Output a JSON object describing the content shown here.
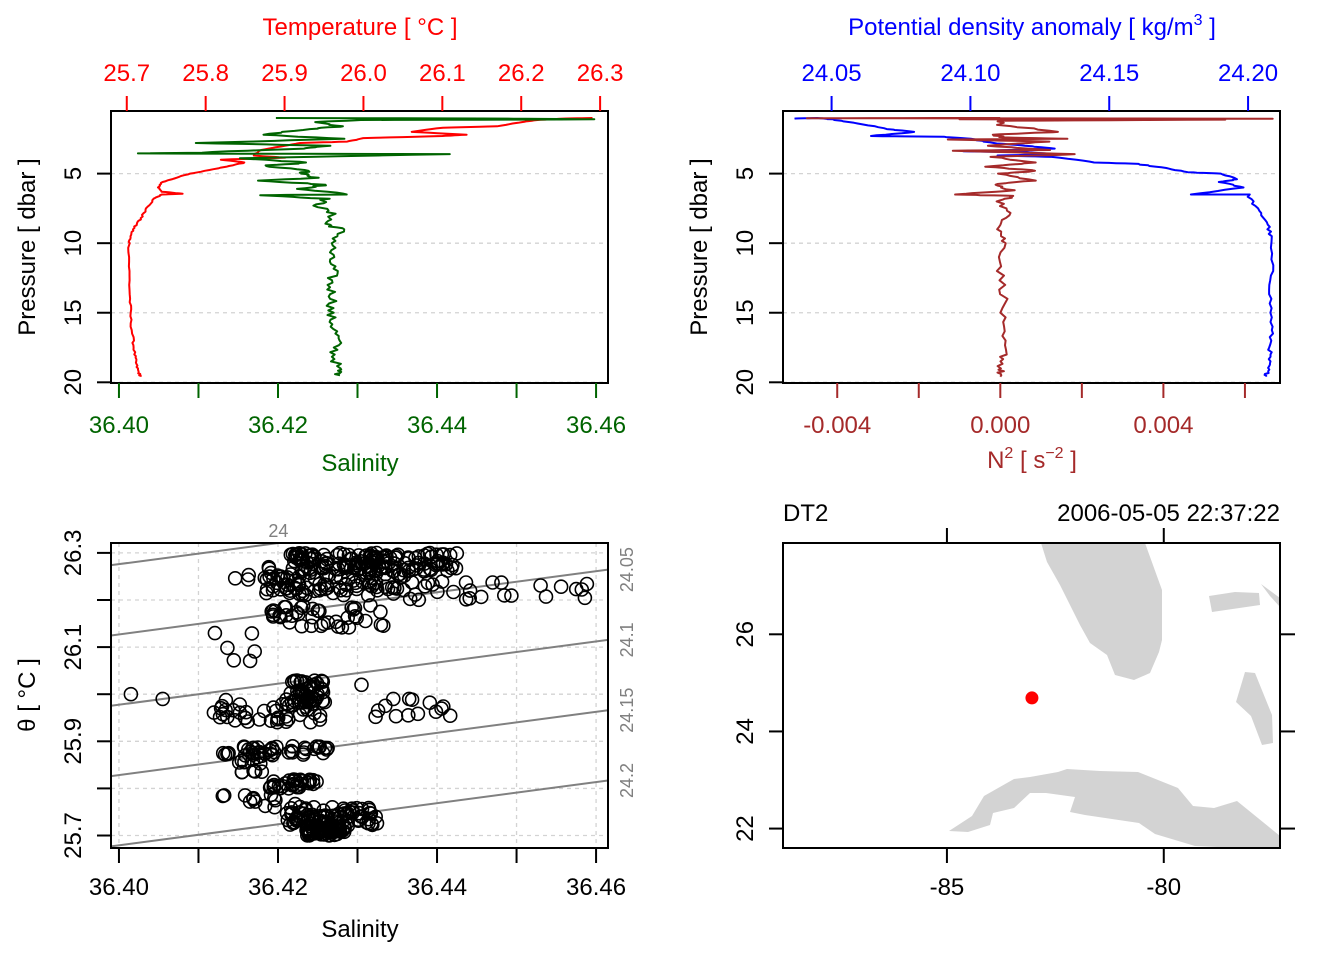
{
  "chart_data": [
    {
      "id": "ts_profile",
      "type": "line",
      "top_axis": {
        "label": "Temperature [ °C ]",
        "color": "#ff0000",
        "range": [
          25.68,
          26.31
        ],
        "ticks": [
          25.7,
          25.8,
          25.9,
          26.0,
          26.1,
          26.2,
          26.3
        ],
        "tick_labels": [
          "25.7",
          "25.8",
          "25.9",
          "26.0",
          "26.1",
          "26.2",
          "26.3"
        ]
      },
      "bottom_axis": {
        "label": "Salinity",
        "color": "#006400",
        "range": [
          36.399,
          36.4615
        ],
        "ticks": [
          36.4,
          36.41,
          36.42,
          36.43,
          36.44,
          36.45,
          36.46
        ],
        "tick_labels": [
          "36.40",
          "",
          "36.42",
          "",
          "36.44",
          "",
          "36.46"
        ]
      },
      "y_axis": {
        "label": "Pressure [ dbar ]",
        "range": [
          20.05,
          0.5
        ],
        "ticks": [
          5,
          10,
          15,
          20
        ],
        "tick_labels": [
          "5",
          "10",
          "15",
          "20"
        ],
        "grid": true
      },
      "series": [
        {
          "name": "Temperature",
          "color": "#ff0000",
          "points": [
            [
              26.29,
              1.0
            ],
            [
              26.25,
              1.05
            ],
            [
              26.22,
              1.15
            ],
            [
              26.2,
              1.3
            ],
            [
              26.17,
              1.6
            ],
            [
              26.1,
              1.7
            ],
            [
              26.06,
              2.0
            ],
            [
              26.13,
              2.2
            ],
            [
              26.1,
              2.3
            ],
            [
              26.0,
              2.45
            ],
            [
              25.98,
              2.7
            ],
            [
              25.92,
              2.8
            ],
            [
              25.9,
              3.0
            ],
            [
              25.87,
              3.3
            ],
            [
              25.86,
              3.7
            ],
            [
              25.9,
              3.85
            ],
            [
              25.82,
              4.0
            ],
            [
              25.85,
              4.2
            ],
            [
              25.83,
              4.45
            ],
            [
              25.8,
              4.8
            ],
            [
              25.78,
              5.0
            ],
            [
              25.76,
              5.35
            ],
            [
              25.745,
              5.6
            ],
            [
              25.74,
              6.0
            ],
            [
              25.745,
              6.3
            ],
            [
              25.77,
              6.45
            ],
            [
              25.745,
              6.5
            ],
            [
              25.735,
              6.8
            ],
            [
              25.725,
              7.5
            ],
            [
              25.718,
              8.2
            ],
            [
              25.71,
              8.8
            ],
            [
              25.705,
              9.4
            ],
            [
              25.703,
              10.0
            ],
            [
              25.703,
              12.0
            ],
            [
              25.704,
              14.0
            ],
            [
              25.705,
              15.5
            ],
            [
              25.708,
              17.0
            ],
            [
              25.71,
              18.0
            ],
            [
              25.712,
              18.7
            ],
            [
              25.715,
              19.3
            ],
            [
              25.718,
              19.6
            ]
          ]
        },
        {
          "name": "Salinity",
          "color": "#006400",
          "points": [
            [
              36.42,
              1.0
            ],
            [
              36.45,
              1.05
            ],
            [
              36.46,
              1.1
            ],
            [
              36.43,
              1.15
            ],
            [
              36.425,
              1.3
            ],
            [
              36.428,
              1.6
            ],
            [
              36.424,
              1.8
            ],
            [
              36.418,
              2.2
            ],
            [
              36.428,
              2.5
            ],
            [
              36.41,
              2.8
            ],
            [
              36.426,
              3.0
            ],
            [
              36.423,
              3.2
            ],
            [
              36.41,
              3.5
            ],
            [
              36.402,
              3.55
            ],
            [
              36.441,
              3.6
            ],
            [
              36.415,
              3.9
            ],
            [
              36.424,
              4.2
            ],
            [
              36.418,
              4.45
            ],
            [
              36.424,
              4.8
            ],
            [
              36.423,
              5.0
            ],
            [
              36.425,
              5.3
            ],
            [
              36.418,
              5.5
            ],
            [
              36.426,
              5.8
            ],
            [
              36.423,
              6.1
            ],
            [
              36.429,
              6.5
            ],
            [
              36.418,
              6.55
            ],
            [
              36.426,
              6.8
            ],
            [
              36.425,
              7.3
            ],
            [
              36.427,
              8.0
            ],
            [
              36.426,
              8.6
            ],
            [
              36.428,
              9.0
            ],
            [
              36.427,
              10.0
            ],
            [
              36.4265,
              11.0
            ],
            [
              36.427,
              12.0
            ],
            [
              36.4265,
              13.0
            ],
            [
              36.427,
              14.0
            ],
            [
              36.4265,
              15.0
            ],
            [
              36.427,
              16.0
            ],
            [
              36.4275,
              17.0
            ],
            [
              36.427,
              18.0
            ],
            [
              36.4275,
              19.0
            ],
            [
              36.4278,
              19.5
            ]
          ]
        }
      ]
    },
    {
      "id": "density_profile",
      "type": "line",
      "top_axis": {
        "label_main": "Potential density anomaly [ kg/m",
        "label_sup": "3",
        "label_end": " ]",
        "color": "#0000ff",
        "range": [
          24.0325,
          24.2115
        ],
        "ticks": [
          24.05,
          24.1,
          24.15,
          24.2
        ],
        "tick_labels": [
          "24.05",
          "24.10",
          "24.15",
          "24.20"
        ]
      },
      "bottom_axis": {
        "label_main": "N",
        "label_sup": "2",
        "label_mid": " [ s",
        "label_sup2": "−2",
        "label_end": " ]",
        "color": "#a52a2a",
        "range": [
          -0.00533,
          0.00686
        ],
        "ticks": [
          -0.004,
          -0.002,
          0.0,
          0.002,
          0.004,
          0.006
        ],
        "tick_labels": [
          "-0.004",
          "",
          "0.000",
          "",
          "0.004",
          ""
        ]
      },
      "y_axis": {
        "label": "Pressure [ dbar ]",
        "range": [
          20.05,
          0.5
        ],
        "ticks": [
          5,
          10,
          15,
          20
        ],
        "tick_labels": [
          "5",
          "10",
          "15",
          "20"
        ],
        "grid": true
      },
      "series": [
        {
          "name": "Potential density anomaly",
          "color": "#0000ff",
          "points": [
            [
              24.036,
              1.05
            ],
            [
              24.045,
              1.0
            ],
            [
              24.05,
              1.1
            ],
            [
              24.06,
              1.4
            ],
            [
              24.07,
              1.8
            ],
            [
              24.08,
              2.0
            ],
            [
              24.064,
              2.3
            ],
            [
              24.09,
              2.35
            ],
            [
              24.1,
              2.5
            ],
            [
              24.108,
              2.8
            ],
            [
              24.12,
              3.0
            ],
            [
              24.13,
              3.2
            ],
            [
              24.098,
              3.4
            ],
            [
              24.12,
              3.45
            ],
            [
              24.13,
              3.6
            ],
            [
              24.11,
              3.7
            ],
            [
              24.13,
              3.8
            ],
            [
              24.145,
              4.2
            ],
            [
              24.16,
              4.3
            ],
            [
              24.17,
              4.6
            ],
            [
              24.178,
              4.9
            ],
            [
              24.19,
              5.0
            ],
            [
              24.196,
              5.4
            ],
            [
              24.19,
              5.6
            ],
            [
              24.198,
              6.0
            ],
            [
              24.18,
              6.5
            ],
            [
              24.2,
              6.5
            ],
            [
              24.203,
              7.5
            ],
            [
              24.207,
              8.5
            ],
            [
              24.208,
              9.5
            ],
            [
              24.2085,
              12.0
            ],
            [
              24.208,
              14.0
            ],
            [
              24.2085,
              16.0
            ],
            [
              24.208,
              17.5
            ],
            [
              24.2075,
              18.5
            ],
            [
              24.207,
              19.2
            ],
            [
              24.2065,
              19.6
            ]
          ]
        },
        {
          "name": "N2",
          "color": "#a52a2a",
          "points": [
            [
              0.0,
              1.0
            ],
            [
              -0.0047,
              1.02
            ],
            [
              0.0067,
              1.05
            ],
            [
              -0.001,
              1.1
            ],
            [
              0.0055,
              1.12
            ],
            [
              0.0,
              1.2
            ],
            [
              0.0,
              1.5
            ],
            [
              0.0015,
              2.0
            ],
            [
              -0.0002,
              2.2
            ],
            [
              0.0001,
              2.4
            ],
            [
              0.0016,
              2.5
            ],
            [
              -0.0013,
              2.55
            ],
            [
              0.0012,
              2.7
            ],
            [
              -0.0003,
              3.0
            ],
            [
              0.0013,
              3.3
            ],
            [
              -0.0012,
              3.35
            ],
            [
              0.0019,
              3.6
            ],
            [
              -0.0002,
              3.8
            ],
            [
              0.0008,
              4.2
            ],
            [
              -0.0003,
              4.5
            ],
            [
              0.0009,
              4.8
            ],
            [
              0.0,
              5.0
            ],
            [
              0.0008,
              5.5
            ],
            [
              -0.0002,
              5.8
            ],
            [
              0.0003,
              6.2
            ],
            [
              -0.0011,
              6.5
            ],
            [
              0.0003,
              6.6
            ],
            [
              0.0,
              7.0
            ],
            [
              0.0002,
              8.0
            ],
            [
              0.0,
              9.0
            ],
            [
              0.0001,
              10.0
            ],
            [
              0.0,
              12.0
            ],
            [
              0.0001,
              14.0
            ],
            [
              0.0,
              16.0
            ],
            [
              0.0001,
              18.0
            ],
            [
              0.0,
              19.0
            ],
            [
              0.0,
              19.6
            ]
          ]
        }
      ]
    },
    {
      "id": "ts_diagram",
      "type": "scatter",
      "xlabel": "Salinity",
      "ylabel": "θ [ °C ]",
      "xlim": [
        36.399,
        36.4615
      ],
      "ylim": [
        25.6735,
        26.321
      ],
      "x_ticks": [
        36.4,
        36.41,
        36.42,
        36.43,
        36.44,
        36.45,
        36.46
      ],
      "x_tick_labels": [
        "36.40",
        "",
        "36.42",
        "",
        "36.44",
        "",
        "36.46"
      ],
      "y_ticks": [
        25.7,
        25.8,
        25.9,
        26.0,
        26.1,
        26.2,
        26.3
      ],
      "y_tick_labels": [
        "25.7",
        "",
        "25.9",
        "",
        "26.1",
        "",
        "26.3"
      ],
      "grid": true,
      "isopycnals": [
        {
          "label": "24",
          "value": 24.0
        },
        {
          "label": "24.05",
          "value": 24.05
        },
        {
          "label": "24.1",
          "value": 24.1
        },
        {
          "label": "24.15",
          "value": 24.15
        },
        {
          "label": "24.2",
          "value": 24.2
        }
      ],
      "clusters": [
        {
          "s": [
            36.4215,
            36.4425
          ],
          "t": [
            26.26,
            26.3
          ],
          "n": 140
        },
        {
          "s": [
            36.4185,
            36.436
          ],
          "t": [
            26.21,
            26.27
          ],
          "n": 90
        },
        {
          "s": [
            36.436,
            36.459
          ],
          "t": [
            26.2,
            26.24
          ],
          "n": 26
        },
        {
          "s": [
            36.4125,
            36.421
          ],
          "t": [
            26.24,
            26.26
          ],
          "n": 8
        },
        {
          "s": [
            36.419,
            36.434
          ],
          "t": [
            26.14,
            26.19
          ],
          "n": 40
        },
        {
          "s": [
            36.4115,
            36.418
          ],
          "t": [
            26.07,
            26.14
          ],
          "n": 6
        },
        {
          "s": [
            36.421,
            36.426
          ],
          "t": [
            25.98,
            26.03
          ],
          "n": 45
        },
        {
          "s": [
            36.4115,
            36.426
          ],
          "t": [
            25.94,
            25.99
          ],
          "n": 45
        },
        {
          "s": [
            36.4305,
            36.442
          ],
          "t": [
            25.95,
            25.99
          ],
          "n": 12
        },
        {
          "s": [
            36.413,
            36.427
          ],
          "t": [
            25.87,
            25.89
          ],
          "n": 40
        },
        {
          "s": [
            36.4135,
            36.418
          ],
          "t": [
            25.83,
            25.87
          ],
          "n": 12
        },
        {
          "s": [
            36.419,
            36.425
          ],
          "t": [
            25.8,
            25.82
          ],
          "n": 30
        },
        {
          "s": [
            36.413,
            36.423
          ],
          "t": [
            25.76,
            25.79
          ],
          "n": 14
        },
        {
          "s": [
            36.421,
            36.4325
          ],
          "t": [
            25.72,
            25.76
          ],
          "n": 80
        },
        {
          "s": [
            36.4235,
            36.4285
          ],
          "t": [
            25.7,
            25.72
          ],
          "n": 60
        }
      ],
      "outliers": [
        [
          36.4015,
          26.0
        ],
        [
          36.4055,
          25.99
        ],
        [
          36.4305,
          26.02
        ],
        [
          36.4345,
          25.99
        ],
        [
          36.4365,
          25.99
        ]
      ]
    },
    {
      "id": "station_map",
      "type": "scatter",
      "title_left": "DT2",
      "title_right": "2006-05-05 22:37:22",
      "xlim": [
        -88.78,
        -77.32
      ],
      "ylim": [
        21.6,
        27.88
      ],
      "x_ticks": [
        -85,
        -80
      ],
      "x_tick_labels": [
        "-85",
        "-80"
      ],
      "y_ticks": [
        22,
        24,
        26
      ],
      "y_tick_labels": [
        "22",
        "24",
        "26"
      ],
      "station": {
        "lon": -83.04,
        "lat": 24.69,
        "color": "#ff0000"
      },
      "land_color": "#d3d3d3"
    }
  ]
}
